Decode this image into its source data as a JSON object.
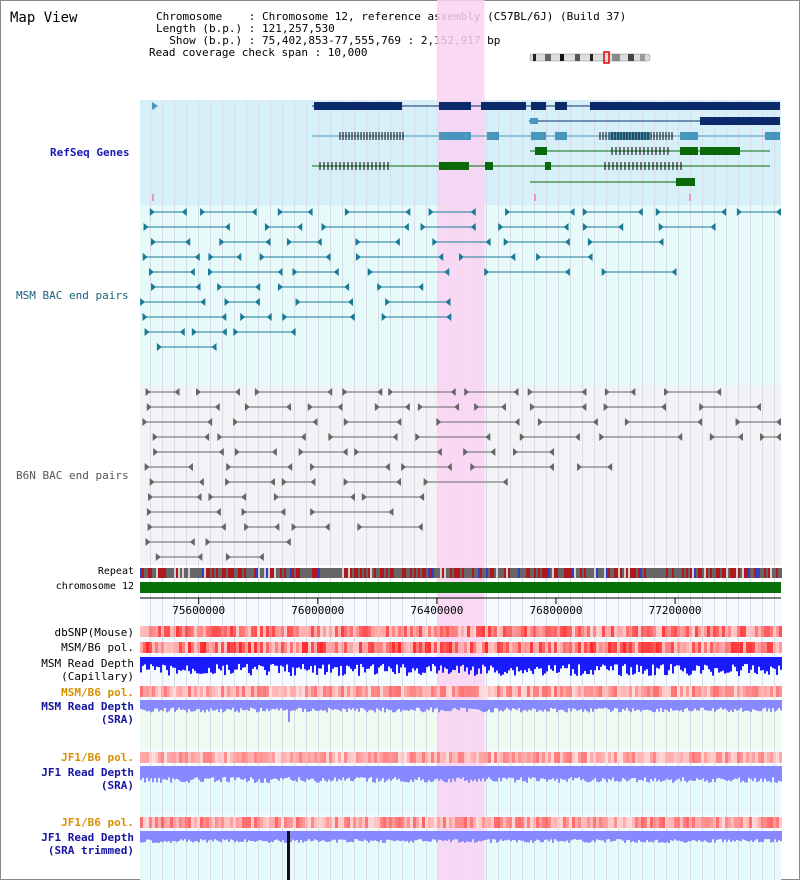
{
  "view_title": "Map View",
  "info": {
    "chromosome_line": "Chromosome    : Chromosome 12, reference assembly (C57BL/6J) (Build 37)",
    "length_line": "Length (b.p.) : 121,257,530",
    "show_line": "  Show (b.p.) : 75,402,853-77,555,769 : 2,152,917 bp",
    "coverage_line": "Read coverage check span : 10,000"
  },
  "tracks": {
    "refseq": "RefSeq Genes",
    "msm_bac": "MSM BAC end pairs",
    "b6n_bac": "B6N BAC end pairs",
    "repeat": "Repeat",
    "chromosome": "chromosome 12",
    "dbsnp": "dbSNP(Mouse)",
    "msm_b6_pol_1": "MSM/B6 pol.",
    "msm_read_depth_cap_1": "MSM Read Depth",
    "msm_read_depth_cap_2": "(Capillary)",
    "msm_b6_pol_2": "MSM/B6 pol.",
    "msm_read_depth_sra_1": "MSM Read Depth",
    "msm_read_depth_sra_2": "(SRA)",
    "jf1_b6_pol_1": "JF1/B6 pol.",
    "jf1_read_depth_1": "JF1 Read Depth",
    "jf1_read_depth_2": "(SRA)",
    "jf1_b6_pol_2": "JF1/B6 pol.",
    "jf1_trim_1": "JF1 Read Depth",
    "jf1_trim_2": "(SRA trimmed)"
  },
  "axis": {
    "range_bp": [
      75402853,
      77555769
    ],
    "ticks": [
      {
        "value": 75600000,
        "label": "75600000"
      },
      {
        "value": 76000000,
        "label": "76000000"
      },
      {
        "value": 76400000,
        "label": "76400000"
      },
      {
        "value": 76800000,
        "label": "76800000"
      },
      {
        "value": 77200000,
        "label": "77200000"
      }
    ]
  },
  "highlight_bp": [
    76400000,
    76560000
  ],
  "colors": {
    "refseq_bg": "#d6f0fa",
    "msm_bg": "#e6fafa",
    "b6n_bg": "#f3f3f6",
    "highlight": "#f9d2f2",
    "refseq_dark": "#0a2a6a",
    "refseq_mid": "#4896be",
    "refseq_green": "#0a6a0a",
    "msm_bac": "#1a7a96",
    "b6n_bac": "#666666",
    "chrom": "#087008",
    "depth_blue": "#1a1aff",
    "depth_light": "#8888ff"
  }
}
